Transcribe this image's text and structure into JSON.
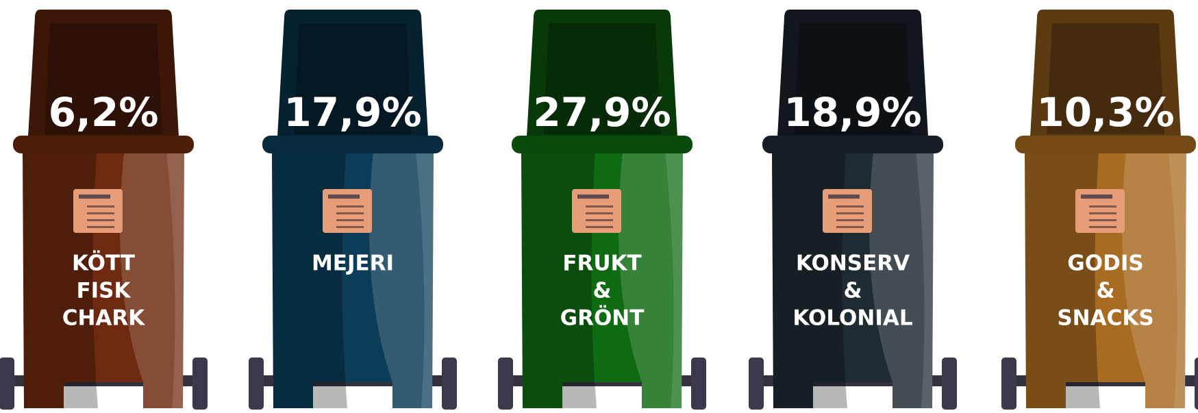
{
  "bins": [
    {
      "percent": "6,2%",
      "label": [
        "KÖTT",
        "FISK",
        "CHARK"
      ],
      "color": "#6e2a10"
    },
    {
      "percent": "17,9%",
      "label": [
        "MEJERI"
      ],
      "color": "#0c3d58"
    },
    {
      "percent": "27,9%",
      "label": [
        "FRUKT",
        "&",
        "GRÖNT"
      ],
      "color": "#0f6b12"
    },
    {
      "percent": "18,9%",
      "label": [
        "KONSERV",
        "&",
        "KOLONIAL"
      ],
      "color": "#1f2b33"
    },
    {
      "percent": "10,3%",
      "label": [
        "GODIS",
        "&",
        "SNACKS"
      ],
      "color": "#a86b22"
    }
  ]
}
